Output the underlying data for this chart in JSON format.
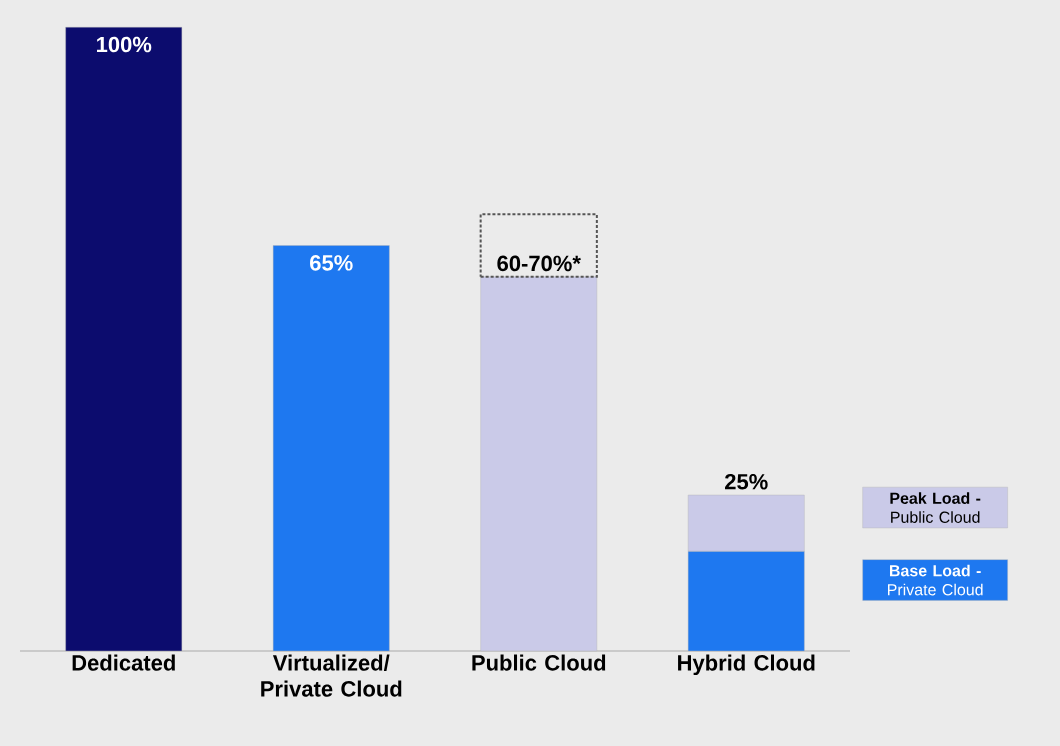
{
  "chart_data": {
    "type": "bar",
    "stacked": true,
    "categories": [
      "Dedicated",
      "Virtualized/ Private Cloud",
      "Public Cloud",
      "Hybrid Cloud"
    ],
    "series": [
      {
        "colors": [
          "#0c0c6e",
          "#1e78f0",
          "#cacae8",
          null
        ],
        "values": [
          100,
          65,
          60,
          null
        ],
        "value_labels": [
          "100%",
          "65%",
          "60-70%*",
          null
        ]
      },
      {
        "color": "#555555",
        "line_style": "dashed",
        "values": [
          null,
          null,
          10,
          null
        ]
      },
      {
        "name": "**Base Load -** Private Cloud",
        "color": "#1e78f0",
        "values": [
          null,
          null,
          null,
          16
        ]
      },
      {
        "name": "**Peak Load -** Public Cloud",
        "color": "#cacae8",
        "values": [
          null,
          null,
          null,
          9
        ]
      }
    ],
    "totals": [
      null,
      null,
      null,
      "25%"
    ],
    "legend": "right"
  }
}
